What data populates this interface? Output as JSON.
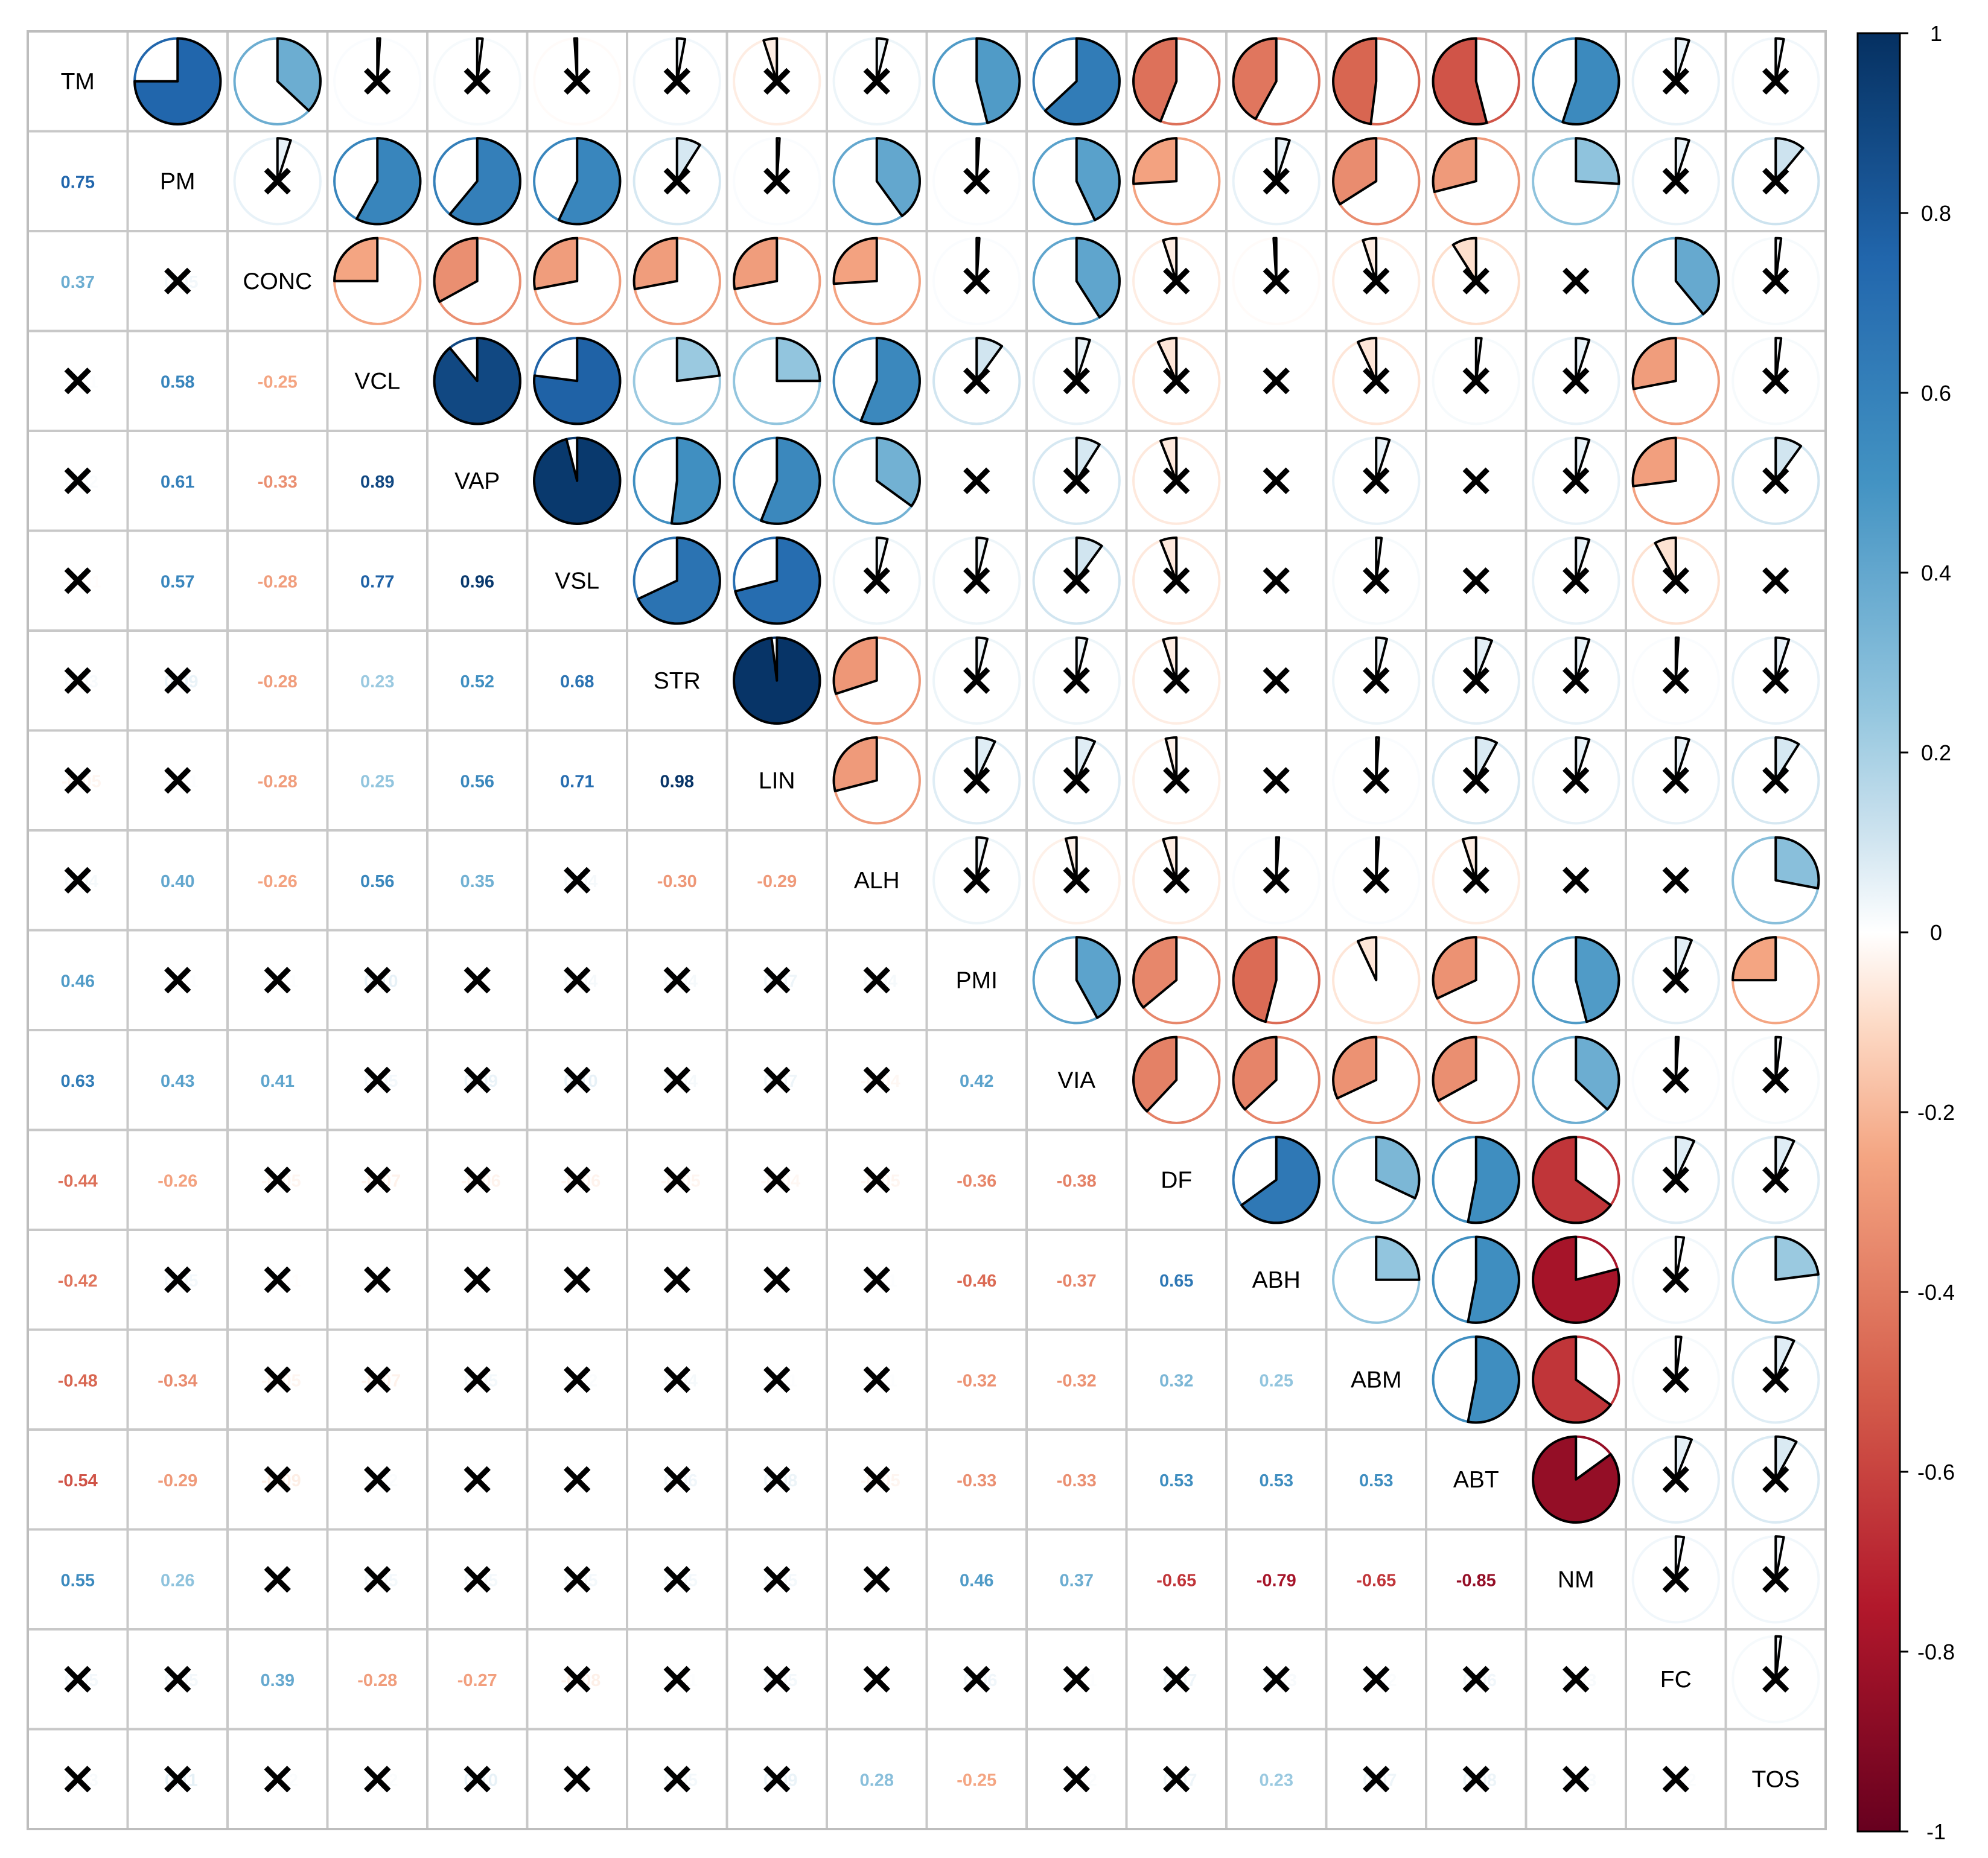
{
  "chart_data": {
    "type": "heatmap",
    "subtype": "correlation-matrix-pie",
    "title": "",
    "variables": [
      "TM",
      "PM",
      "CONC",
      "VCL",
      "VAP",
      "VSL",
      "STR",
      "LIN",
      "ALH",
      "PMI",
      "VIA",
      "DF",
      "ABH",
      "ABM",
      "ABT",
      "NM",
      "FC",
      "TOS"
    ],
    "lower_triangle": "coefficient-labels",
    "upper_triangle": "pie-glyphs",
    "insignificant_marker": "×",
    "matrix": [
      [
        1,
        0.75,
        0.37,
        0.01,
        0.02,
        -0.01,
        0.03,
        -0.05,
        0.04,
        0.46,
        0.63,
        -0.44,
        -0.42,
        -0.48,
        -0.54,
        0.55,
        0.05,
        0.03
      ],
      [
        0.75,
        1,
        0.05,
        0.58,
        0.61,
        0.57,
        0.09,
        0.01,
        0.4,
        0.01,
        0.43,
        -0.26,
        0.05,
        -0.34,
        -0.29,
        0.26,
        0.05,
        0.11
      ],
      [
        0.37,
        0.05,
        1,
        -0.25,
        -0.33,
        -0.28,
        -0.28,
        -0.28,
        -0.26,
        0.01,
        0.41,
        -0.05,
        -0.01,
        -0.05,
        -0.09,
        0,
        0.39,
        0.02
      ],
      [
        0.01,
        0.58,
        -0.25,
        1,
        0.89,
        0.77,
        0.23,
        0.25,
        0.56,
        0.1,
        0.05,
        -0.07,
        0,
        -0.07,
        0.02,
        0.05,
        -0.28,
        0.02
      ],
      [
        0.02,
        0.61,
        -0.33,
        0.89,
        1,
        0.96,
        0.52,
        0.56,
        0.35,
        0,
        0.09,
        -0.06,
        0,
        0.05,
        0,
        0.05,
        -0.27,
        0.1
      ],
      [
        -0.01,
        0.57,
        -0.28,
        0.77,
        0.96,
        1,
        0.68,
        0.71,
        0.04,
        0.04,
        0.1,
        -0.06,
        0,
        0.02,
        0,
        0.05,
        -0.08,
        0
      ],
      [
        0.03,
        0.09,
        -0.28,
        0.23,
        0.52,
        0.68,
        1,
        0.98,
        -0.3,
        0.04,
        0.04,
        -0.05,
        0,
        0.04,
        0.06,
        0.05,
        0.01,
        0.05
      ],
      [
        -0.05,
        0.01,
        -0.28,
        0.25,
        0.56,
        0.71,
        0.98,
        1,
        -0.29,
        0.07,
        0.07,
        -0.04,
        0,
        0.01,
        0.08,
        0.05,
        0.05,
        0.09
      ],
      [
        0.04,
        0.4,
        -0.26,
        0.56,
        0.35,
        0.04,
        -0.3,
        -0.29,
        1,
        0.04,
        -0.04,
        -0.05,
        0.01,
        0.01,
        -0.05,
        0,
        0,
        0.28
      ],
      [
        0.46,
        0.01,
        0.01,
        0.1,
        0,
        0.04,
        0.04,
        0.07,
        0.04,
        1,
        0.42,
        -0.36,
        -0.46,
        -0.07,
        -0.32,
        0.46,
        0.06,
        -0.25
      ],
      [
        0.63,
        0.43,
        0.41,
        0.05,
        0.09,
        0.1,
        0.04,
        0.07,
        -0.04,
        0.42,
        1,
        -0.38,
        -0.37,
        -0.32,
        -0.33,
        0.37,
        0.01,
        0.02
      ],
      [
        -0.44,
        -0.26,
        -0.05,
        -0.07,
        -0.06,
        -0.06,
        -0.05,
        -0.04,
        -0.05,
        -0.36,
        -0.38,
        1,
        0.65,
        0.32,
        0.53,
        -0.65,
        0.07,
        0.07
      ],
      [
        -0.42,
        0.05,
        -0.01,
        0,
        0,
        0,
        0,
        0,
        0.01,
        -0.46,
        -0.37,
        0.65,
        1,
        0.25,
        0.53,
        -0.79,
        0.03,
        0.23
      ],
      [
        -0.48,
        -0.34,
        -0.05,
        -0.07,
        0.05,
        0.02,
        0.04,
        0.01,
        0.01,
        -0.32,
        -0.32,
        0.32,
        0.25,
        1,
        0.53,
        -0.65,
        0.02,
        0.07
      ],
      [
        -0.54,
        -0.29,
        -0.09,
        0.02,
        0,
        0,
        0.06,
        0.08,
        -0.05,
        -0.33,
        -0.33,
        0.53,
        0.53,
        0.53,
        1,
        -0.85,
        0.06,
        0.08
      ],
      [
        0.55,
        0.26,
        0,
        0.05,
        0.05,
        0.05,
        0.05,
        0.05,
        0,
        0.46,
        0.37,
        -0.65,
        -0.79,
        -0.65,
        -0.85,
        1,
        0.03,
        0.03
      ],
      [
        0.05,
        0.05,
        0.39,
        -0.28,
        -0.27,
        -0.08,
        0.01,
        0.05,
        0,
        0.06,
        0.01,
        0.07,
        0.03,
        0.02,
        0.06,
        0.03,
        1,
        0.02
      ],
      [
        0.03,
        0.11,
        0.02,
        0.02,
        0.1,
        0,
        0.05,
        0.09,
        0.28,
        -0.25,
        0.02,
        0.07,
        0.23,
        0.07,
        0.08,
        0.03,
        0.02,
        1
      ]
    ],
    "significant": [
      [
        0,
        1,
        1,
        0,
        0,
        0,
        0,
        0,
        0,
        1,
        1,
        1,
        1,
        1,
        1,
        1,
        0,
        0
      ],
      [
        1,
        0,
        0,
        1,
        1,
        1,
        0,
        0,
        1,
        0,
        1,
        1,
        0,
        1,
        1,
        1,
        0,
        0
      ],
      [
        1,
        0,
        0,
        1,
        1,
        1,
        1,
        1,
        1,
        0,
        1,
        0,
        0,
        0,
        0,
        0,
        1,
        0
      ],
      [
        0,
        1,
        1,
        0,
        1,
        1,
        1,
        1,
        1,
        0,
        0,
        0,
        0,
        0,
        0,
        0,
        1,
        0
      ],
      [
        0,
        1,
        1,
        1,
        0,
        1,
        1,
        1,
        1,
        0,
        0,
        0,
        0,
        0,
        0,
        0,
        1,
        0
      ],
      [
        0,
        1,
        1,
        1,
        1,
        0,
        1,
        1,
        0,
        0,
        0,
        0,
        0,
        0,
        0,
        0,
        0,
        0
      ],
      [
        0,
        0,
        1,
        1,
        1,
        1,
        0,
        1,
        1,
        0,
        0,
        0,
        0,
        0,
        0,
        0,
        0,
        0
      ],
      [
        0,
        0,
        1,
        1,
        1,
        1,
        1,
        0,
        1,
        0,
        0,
        0,
        0,
        0,
        0,
        0,
        0,
        0
      ],
      [
        0,
        1,
        1,
        1,
        1,
        0,
        1,
        1,
        0,
        0,
        0,
        0,
        0,
        0,
        0,
        0,
        0,
        1
      ],
      [
        1,
        0,
        0,
        0,
        0,
        0,
        0,
        0,
        0,
        0,
        1,
        1,
        1,
        1,
        1,
        1,
        0,
        1
      ],
      [
        1,
        1,
        1,
        0,
        0,
        0,
        0,
        0,
        0,
        1,
        0,
        1,
        1,
        1,
        1,
        1,
        0,
        0
      ],
      [
        1,
        1,
        0,
        0,
        0,
        0,
        0,
        0,
        0,
        1,
        1,
        0,
        1,
        1,
        1,
        1,
        0,
        0
      ],
      [
        1,
        0,
        0,
        0,
        0,
        0,
        0,
        0,
        0,
        1,
        1,
        1,
        0,
        1,
        1,
        1,
        0,
        1
      ],
      [
        1,
        1,
        0,
        0,
        0,
        0,
        0,
        0,
        0,
        1,
        1,
        1,
        1,
        0,
        1,
        1,
        0,
        0
      ],
      [
        1,
        1,
        0,
        0,
        0,
        0,
        0,
        0,
        0,
        1,
        1,
        1,
        1,
        1,
        0,
        1,
        0,
        0
      ],
      [
        1,
        1,
        0,
        0,
        0,
        0,
        0,
        0,
        0,
        1,
        1,
        1,
        1,
        1,
        1,
        0,
        0,
        0
      ],
      [
        0,
        0,
        1,
        1,
        1,
        0,
        0,
        0,
        0,
        0,
        0,
        0,
        0,
        0,
        0,
        0,
        0,
        0
      ],
      [
        0,
        0,
        0,
        0,
        0,
        0,
        0,
        0,
        1,
        1,
        0,
        0,
        1,
        0,
        0,
        0,
        0,
        0
      ]
    ],
    "colorbar": {
      "range": [
        -1,
        1
      ],
      "ticks": [
        "1",
        "0.8",
        "0.6",
        "0.4",
        "0.2",
        "0",
        "-0.2",
        "-0.4",
        "-0.6",
        "-0.8",
        "-1"
      ],
      "tick_values": [
        1,
        0.8,
        0.6,
        0.4,
        0.2,
        0,
        -0.2,
        -0.4,
        -0.6,
        -0.8,
        -1
      ],
      "stops": [
        {
          "v": -1.0,
          "color": "#67001F"
        },
        {
          "v": -0.75,
          "color": "#B2182B"
        },
        {
          "v": -0.5,
          "color": "#D6604D"
        },
        {
          "v": -0.25,
          "color": "#F4A582"
        },
        {
          "v": -0.1,
          "color": "#FDDBC7"
        },
        {
          "v": 0.0,
          "color": "#FFFFFF"
        },
        {
          "v": 0.1,
          "color": "#D1E5F0"
        },
        {
          "v": 0.25,
          "color": "#92C5DE"
        },
        {
          "v": 0.5,
          "color": "#4393C3"
        },
        {
          "v": 0.75,
          "color": "#2166AC"
        },
        {
          "v": 1.0,
          "color": "#053061"
        }
      ]
    }
  }
}
